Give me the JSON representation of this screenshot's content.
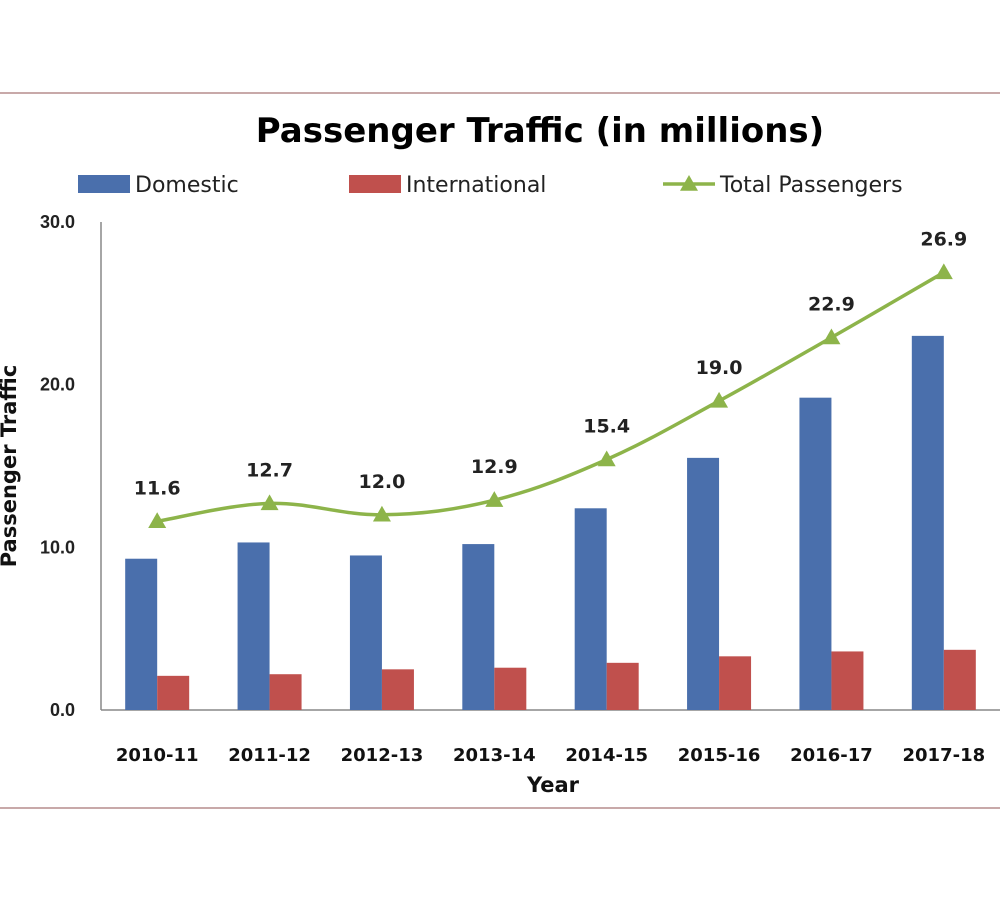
{
  "chart_data": {
    "type": "bar",
    "title": "Passenger Traffic (in millions)",
    "xlabel": "Year",
    "ylabel": "Passenger Traffic",
    "categories": [
      "2010-11",
      "2011-12",
      "2012-13",
      "2013-14",
      "2014-15",
      "2015-16",
      "2016-17",
      "2017-18"
    ],
    "ylim": [
      0,
      30
    ],
    "yticks": [
      "0.0",
      "10.0",
      "20.0",
      "30.0"
    ],
    "grid": false,
    "legend_position": "top",
    "series": [
      {
        "name": "Domestic",
        "type": "bar",
        "color": "#4a6fac",
        "values": [
          9.3,
          10.3,
          9.5,
          10.2,
          12.4,
          15.5,
          19.2,
          23.0
        ]
      },
      {
        "name": "International",
        "type": "bar",
        "color": "#c0504d",
        "values": [
          2.1,
          2.2,
          2.5,
          2.6,
          2.9,
          3.3,
          3.6,
          3.7
        ]
      },
      {
        "name": "Total Passengers",
        "type": "line",
        "marker": "triangle",
        "color": "#8db44a",
        "values": [
          11.6,
          12.7,
          12.0,
          12.9,
          15.4,
          19.0,
          22.9,
          26.9
        ],
        "labels": [
          "11.6",
          "12.7",
          "12.0",
          "12.9",
          "15.4",
          "19.0",
          "22.9",
          "26.9"
        ]
      }
    ]
  }
}
